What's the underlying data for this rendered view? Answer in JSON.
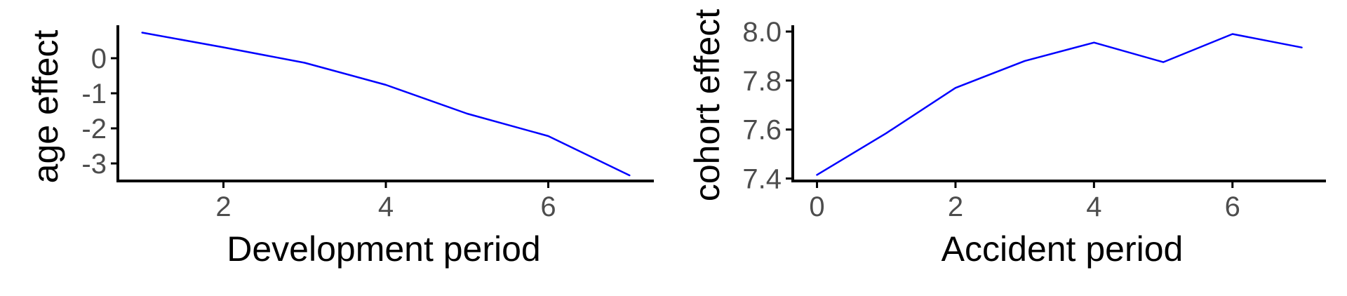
{
  "chart_data": [
    {
      "type": "line",
      "xlabel": "Development period",
      "ylabel": "age effect",
      "x": [
        1,
        2,
        3,
        4,
        5,
        6,
        7
      ],
      "series": [
        {
          "values": [
            0.73,
            0.31,
            -0.13,
            -0.76,
            -1.58,
            -2.22,
            -3.34
          ],
          "color": "#0000ff"
        }
      ],
      "xlim": [
        0.7,
        7.3
      ],
      "ylim": [
        -3.5,
        0.9
      ],
      "xticks": [
        2,
        4,
        6
      ],
      "xtick_labels": [
        "2",
        "4",
        "6"
      ],
      "yticks": [
        0,
        -1,
        -2,
        -3
      ],
      "ytick_labels": [
        "0",
        "-1",
        "-2",
        "-3"
      ],
      "grid": false,
      "legend": "none"
    },
    {
      "type": "line",
      "xlabel": "Accident period",
      "ylabel": "cohort effect",
      "x": [
        0,
        1,
        2,
        3,
        4,
        5,
        6,
        7
      ],
      "series": [
        {
          "values": [
            7.415,
            7.585,
            7.77,
            7.88,
            7.955,
            7.875,
            7.99,
            7.935
          ],
          "color": "#0000ff"
        }
      ],
      "xlim": [
        -0.35,
        7.35
      ],
      "ylim": [
        7.39,
        8.02
      ],
      "xticks": [
        0,
        2,
        4,
        6
      ],
      "xtick_labels": [
        "0",
        "2",
        "4",
        "6"
      ],
      "yticks": [
        7.4,
        7.6,
        7.8,
        8.0
      ],
      "ytick_labels": [
        "7.4",
        "7.6",
        "7.8",
        "8.0"
      ],
      "grid": false,
      "legend": "none"
    }
  ]
}
